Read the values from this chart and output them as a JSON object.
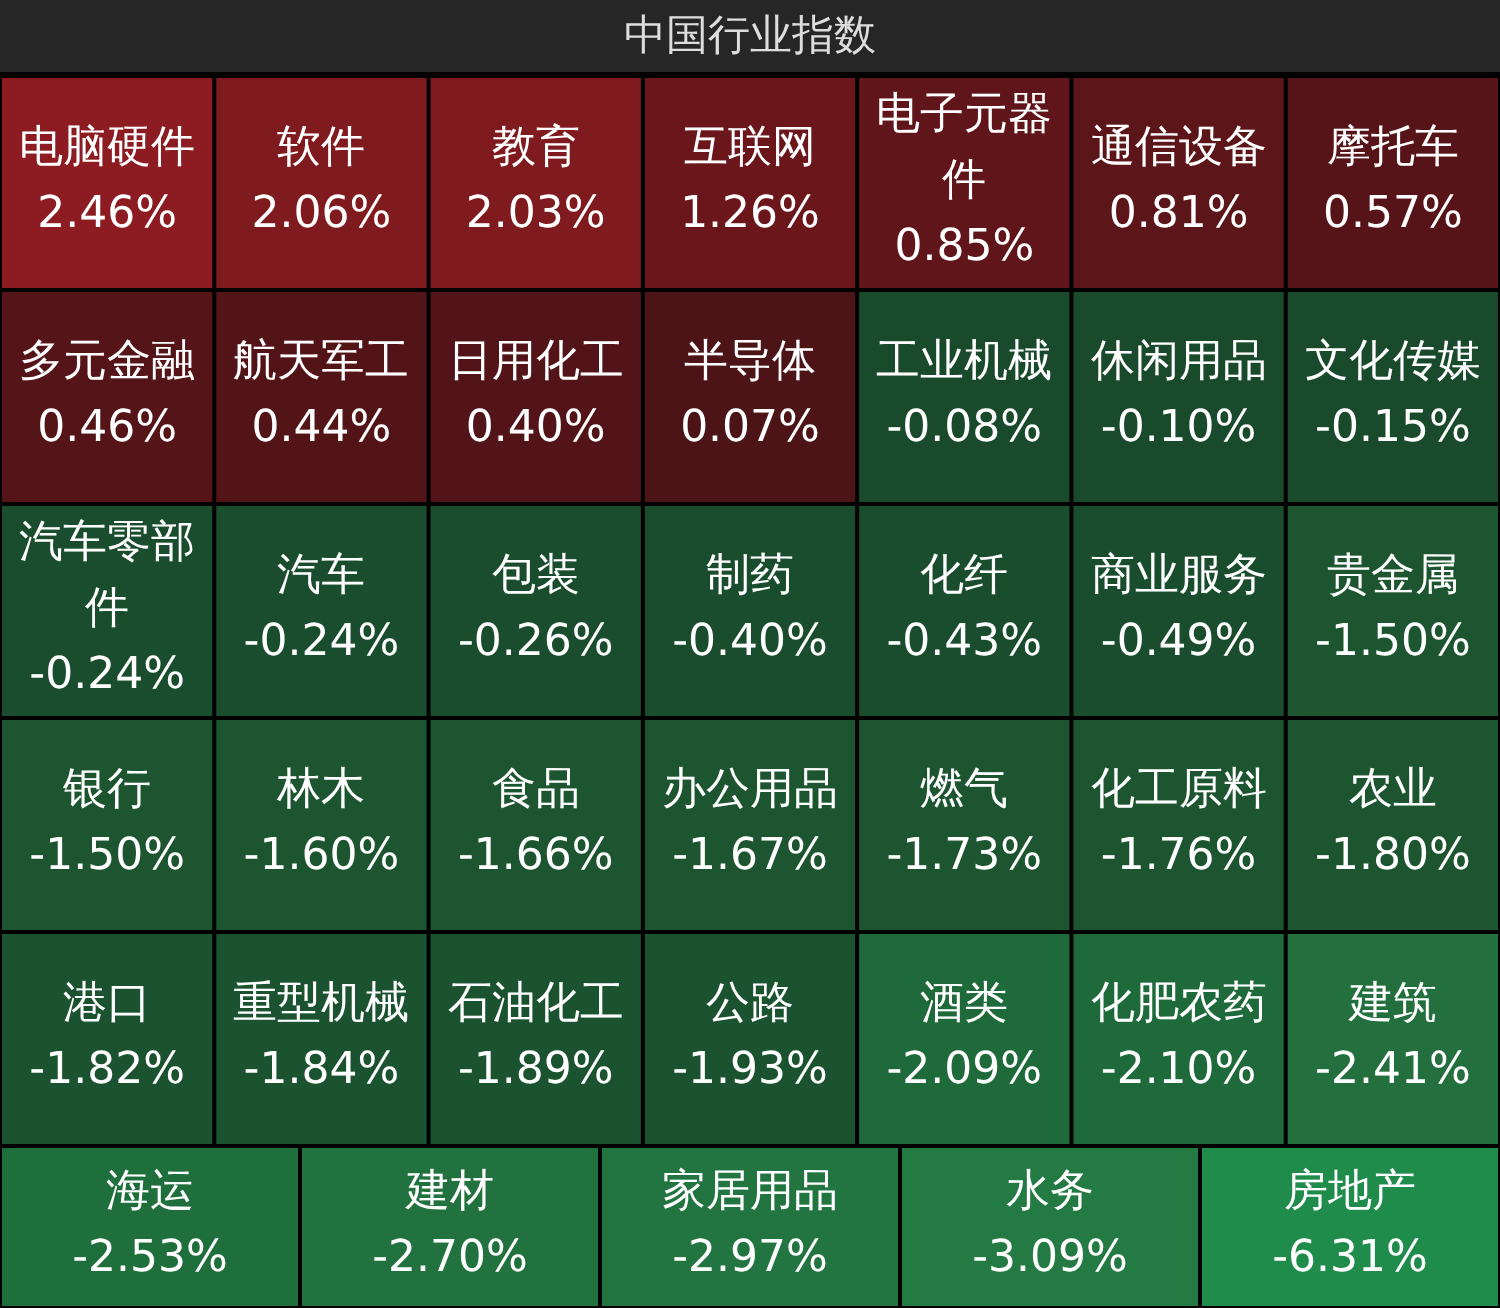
{
  "chart_data": {
    "type": "other",
    "title": "中国行业指数",
    "categories": [
      "电脑硬件",
      "软件",
      "教育",
      "互联网",
      "电子元器件",
      "通信设备",
      "摩托车",
      "多元金融",
      "航天军工",
      "日用化工",
      "半导体",
      "工业机械",
      "休闲用品",
      "文化传媒",
      "汽车零部件",
      "汽车",
      "包装",
      "制药",
      "化纤",
      "商业服务",
      "贵金属",
      "银行",
      "林木",
      "食品",
      "办公用品",
      "燃气",
      "化工原料",
      "农业",
      "港口",
      "重型机械",
      "石油化工",
      "公路",
      "酒类",
      "化肥农药",
      "建筑",
      "海运",
      "建材",
      "家居用品",
      "水务",
      "房地产"
    ],
    "values": [
      2.46,
      2.06,
      2.03,
      1.26,
      0.85,
      0.81,
      0.57,
      0.46,
      0.44,
      0.4,
      0.07,
      -0.08,
      -0.1,
      -0.15,
      -0.24,
      -0.24,
      -0.26,
      -0.4,
      -0.43,
      -0.49,
      -1.5,
      -1.5,
      -1.6,
      -1.66,
      -1.67,
      -1.73,
      -1.76,
      -1.8,
      -1.82,
      -1.84,
      -1.89,
      -1.93,
      -2.09,
      -2.1,
      -2.41,
      -2.53,
      -2.7,
      -2.97,
      -3.09,
      -6.31
    ],
    "value_labels": [
      "2.46%",
      "2.06%",
      "2.03%",
      "1.26%",
      "0.85%",
      "0.81%",
      "0.57%",
      "0.46%",
      "0.44%",
      "0.40%",
      "0.07%",
      "-0.08%",
      "-0.10%",
      "-0.15%",
      "-0.24%",
      "-0.24%",
      "-0.26%",
      "-0.40%",
      "-0.43%",
      "-0.49%",
      "-1.50%",
      "-1.50%",
      "-1.60%",
      "-1.66%",
      "-1.67%",
      "-1.73%",
      "-1.76%",
      "-1.80%",
      "-1.82%",
      "-1.84%",
      "-1.89%",
      "-1.93%",
      "-2.09%",
      "-2.10%",
      "-2.41%",
      "-2.53%",
      "-2.70%",
      "-2.97%",
      "-3.09%",
      "-6.31%"
    ],
    "colors": [
      "#8c1c22",
      "#7f1a1f",
      "#7f1a1f",
      "#6a161b",
      "#5f1519",
      "#5c1519",
      "#571418",
      "#541418",
      "#531418",
      "#521418",
      "#4c1417",
      "#1a4a2c",
      "#1a4a2c",
      "#1a4a2c",
      "#1a4d2d",
      "#1a4d2d",
      "#1a4d2d",
      "#1a4d2d",
      "#1a4d2d",
      "#1a4d2d",
      "#1c552f",
      "#1c552f",
      "#1c5530",
      "#1c5530",
      "#1c5530",
      "#1c5530",
      "#1c5530",
      "#1c5530",
      "#1b5330",
      "#1b5330",
      "#1b5330",
      "#1b5330",
      "#1f6a3b",
      "#1f6a3b",
      "#236f3e",
      "#1f6f3d",
      "#21723f",
      "#227540",
      "#237a42",
      "#1f8c4b"
    ]
  }
}
